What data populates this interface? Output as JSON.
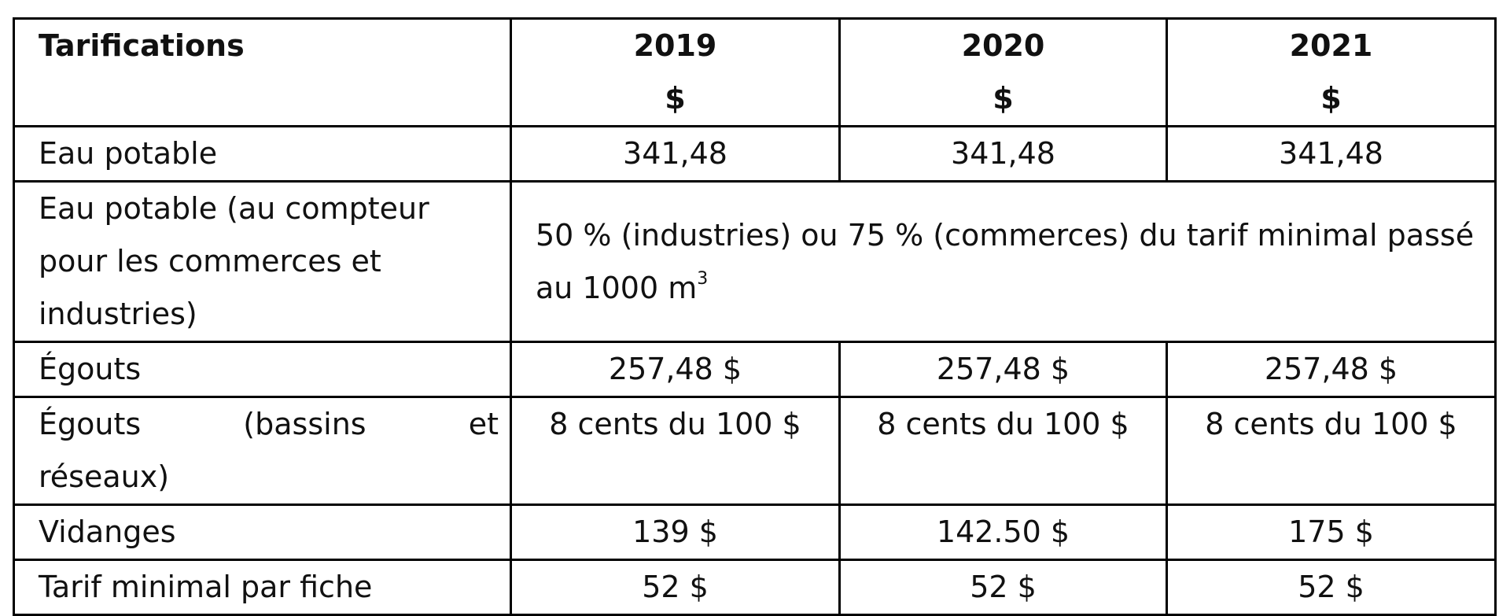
{
  "table": {
    "header": {
      "label": "Tarifications",
      "years": [
        "2019",
        "2020",
        "2021"
      ],
      "currency": "$"
    },
    "rows": [
      {
        "label": "Eau potable",
        "values": [
          "341,48",
          "341,48",
          "341,48"
        ]
      },
      {
        "label": "Eau potable (au compteur pour les commerces et industries)",
        "merged_text": "50 % (industries) ou 75 % (commerces) du tarif minimal passé au 1000 m",
        "merged_sup": "3"
      },
      {
        "label": "Égouts",
        "values": [
          "257,48 $",
          "257,48 $",
          "257,48 $"
        ]
      },
      {
        "label_line1": "Égouts (bassins et",
        "label_line2": "réseaux)",
        "values": [
          "8 cents du 100 $",
          "8 cents du 100 $",
          "8 cents du 100 $"
        ]
      },
      {
        "label": "Vidanges",
        "values": [
          "139 $",
          "142.50 $",
          "175 $"
        ]
      },
      {
        "label": "Tarif minimal par fiche",
        "values": [
          "52 $",
          "52 $",
          "52 $"
        ]
      }
    ]
  }
}
